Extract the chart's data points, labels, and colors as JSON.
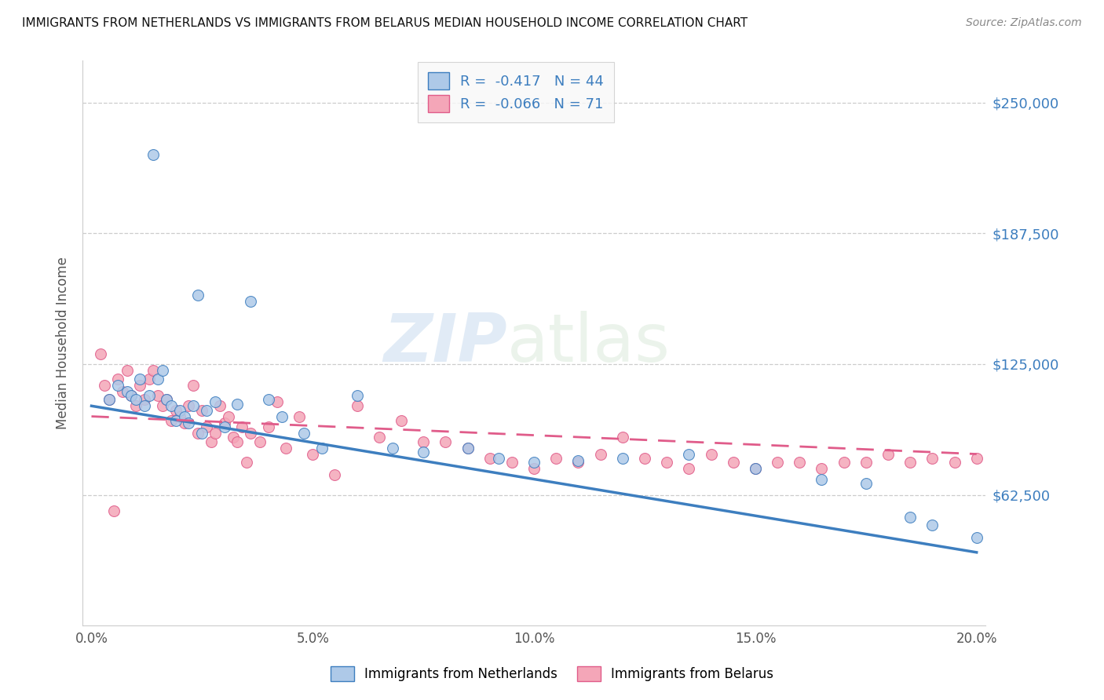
{
  "title": "IMMIGRANTS FROM NETHERLANDS VS IMMIGRANTS FROM BELARUS MEDIAN HOUSEHOLD INCOME CORRELATION CHART",
  "source": "Source: ZipAtlas.com",
  "ylabel": "Median Household Income",
  "xlabel_ticks": [
    "0.0%",
    "5.0%",
    "10.0%",
    "15.0%",
    "20.0%"
  ],
  "xlabel_vals": [
    0.0,
    0.05,
    0.1,
    0.15,
    0.2
  ],
  "ytick_labels": [
    "$62,500",
    "$125,000",
    "$187,500",
    "$250,000"
  ],
  "ytick_vals": [
    62500,
    125000,
    187500,
    250000
  ],
  "ylim": [
    0,
    270000
  ],
  "xlim": [
    -0.002,
    0.202
  ],
  "legend_label1": "Immigrants from Netherlands",
  "legend_label2": "Immigrants from Belarus",
  "R1": "-0.417",
  "N1": "44",
  "R2": "-0.066",
  "N2": "71",
  "color_nl_fill": "#aec9e8",
  "color_by_fill": "#f4a6b8",
  "color_blue": "#3d7ebf",
  "color_pink": "#e05c8a",
  "watermark_zip": "ZIP",
  "watermark_atlas": "atlas",
  "background_color": "#ffffff",
  "grid_color": "#cccccc",
  "nl_trend": [
    105000,
    35000
  ],
  "by_trend": [
    100000,
    82000
  ],
  "scatter_nl_x": [
    0.004,
    0.006,
    0.008,
    0.009,
    0.01,
    0.011,
    0.012,
    0.013,
    0.014,
    0.015,
    0.016,
    0.017,
    0.018,
    0.019,
    0.02,
    0.021,
    0.022,
    0.023,
    0.024,
    0.025,
    0.026,
    0.028,
    0.03,
    0.033,
    0.036,
    0.04,
    0.043,
    0.048,
    0.052,
    0.06,
    0.068,
    0.075,
    0.085,
    0.092,
    0.1,
    0.11,
    0.12,
    0.135,
    0.15,
    0.165,
    0.175,
    0.185,
    0.19,
    0.2
  ],
  "scatter_nl_y": [
    108000,
    115000,
    112000,
    110000,
    108000,
    118000,
    105000,
    110000,
    225000,
    118000,
    122000,
    108000,
    105000,
    98000,
    103000,
    100000,
    97000,
    105000,
    158000,
    92000,
    103000,
    107000,
    95000,
    106000,
    155000,
    108000,
    100000,
    92000,
    85000,
    110000,
    85000,
    83000,
    85000,
    80000,
    78000,
    79000,
    80000,
    82000,
    75000,
    70000,
    68000,
    52000,
    48000,
    42000
  ],
  "scatter_by_x": [
    0.002,
    0.003,
    0.004,
    0.005,
    0.006,
    0.007,
    0.008,
    0.009,
    0.01,
    0.011,
    0.012,
    0.013,
    0.014,
    0.015,
    0.016,
    0.017,
    0.018,
    0.019,
    0.02,
    0.021,
    0.022,
    0.023,
    0.024,
    0.025,
    0.026,
    0.027,
    0.028,
    0.029,
    0.03,
    0.031,
    0.032,
    0.033,
    0.034,
    0.035,
    0.036,
    0.038,
    0.04,
    0.042,
    0.044,
    0.047,
    0.05,
    0.055,
    0.06,
    0.065,
    0.07,
    0.075,
    0.08,
    0.085,
    0.09,
    0.095,
    0.1,
    0.105,
    0.11,
    0.115,
    0.12,
    0.125,
    0.13,
    0.135,
    0.14,
    0.145,
    0.15,
    0.155,
    0.16,
    0.165,
    0.17,
    0.175,
    0.18,
    0.185,
    0.19,
    0.195,
    0.2
  ],
  "scatter_by_y": [
    130000,
    115000,
    108000,
    55000,
    118000,
    112000,
    122000,
    110000,
    105000,
    115000,
    108000,
    118000,
    122000,
    110000,
    105000,
    108000,
    98000,
    103000,
    100000,
    97000,
    105000,
    115000,
    92000,
    103000,
    95000,
    88000,
    92000,
    105000,
    97000,
    100000,
    90000,
    88000,
    95000,
    78000,
    92000,
    88000,
    95000,
    107000,
    85000,
    100000,
    82000,
    72000,
    105000,
    90000,
    98000,
    88000,
    88000,
    85000,
    80000,
    78000,
    75000,
    80000,
    78000,
    82000,
    90000,
    80000,
    78000,
    75000,
    82000,
    78000,
    75000,
    78000,
    78000,
    75000,
    78000,
    78000,
    82000,
    78000,
    80000,
    78000,
    80000
  ]
}
